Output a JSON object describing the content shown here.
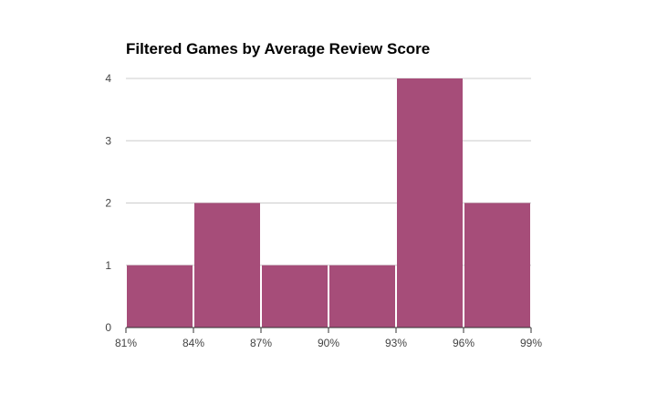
{
  "chart_data": {
    "type": "bar",
    "title": "Filtered Games by Average Review Score",
    "xlabel": "",
    "ylabel": "",
    "x_ticks": [
      "81%",
      "84%",
      "87%",
      "90%",
      "93%",
      "96%",
      "99%"
    ],
    "y_ticks": [
      "0",
      "1",
      "2",
      "3",
      "4"
    ],
    "bins": [
      {
        "start": 81,
        "end": 84,
        "count": 1
      },
      {
        "start": 84,
        "end": 87,
        "count": 2
      },
      {
        "start": 87,
        "end": 90,
        "count": 1
      },
      {
        "start": 90,
        "end": 93,
        "count": 1
      },
      {
        "start": 93,
        "end": 96,
        "count": 4
      },
      {
        "start": 96,
        "end": 99,
        "count": 2
      }
    ],
    "xlim": [
      81,
      99
    ],
    "ylim": [
      0,
      4
    ],
    "grid": true,
    "legend": "none",
    "bar_color": "#a64d79",
    "grid_color": "#cccccc",
    "axis_color": "#333333"
  }
}
